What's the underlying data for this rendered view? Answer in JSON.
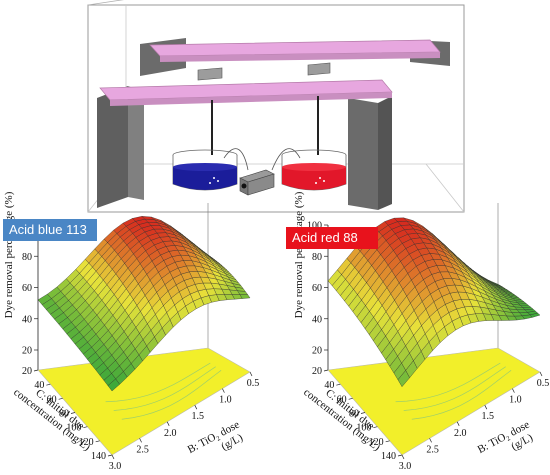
{
  "badges": {
    "left": {
      "text": "Acid blue 113",
      "bg": "#4a86c5",
      "fg": "#ffffff"
    },
    "right": {
      "text": "Acid red 88",
      "bg": "#e8121c",
      "fg": "#ffffff"
    }
  },
  "colors": {
    "box_outline": "#9a9a9a",
    "pillar": "#6b6b6b",
    "rail": "#e7a7df",
    "rail_edge": "#b57aa9",
    "blue_liquid": "#1b1d9a",
    "red_liquid": "#e2172a",
    "floor_contour": "#f2ef2a",
    "surface_low": "#1f9d3a",
    "surface_mid": "#e7e23a",
    "surface_high": "#d6281e"
  },
  "chart_data": [
    {
      "type": "surface3d",
      "name": "Acid blue 113",
      "zlabel": "Dye removal percentage (%)",
      "xlabel": "B: TiO₂ dose (g/L)",
      "ylabel": "C: Initial dye concentration (mg/L)",
      "x_ticks": [
        "3.0",
        "2.5",
        "2.0",
        "1.5",
        "1.0",
        "0.5"
      ],
      "y_ticks": [
        "20",
        "40",
        "60",
        "80",
        "100",
        "120",
        "140"
      ],
      "z_ticks": [
        "20",
        "40",
        "60",
        "80",
        "100"
      ],
      "xlim": [
        0.5,
        3.0
      ],
      "ylim": [
        20,
        140
      ],
      "zlim": [
        20,
        100
      ],
      "surface": {
        "peak_x": 1.5,
        "peak_y": 20,
        "peak_z": 97,
        "low_z": 45
      }
    },
    {
      "type": "surface3d",
      "name": "Acid red 88",
      "zlabel": "Dye removal percentage (%)",
      "xlabel": "B: TiO₂ dose (g/L)",
      "ylabel": "C: Initial dye concentration (mg/L)",
      "x_ticks": [
        "3.0",
        "2.5",
        "2.0",
        "1.5",
        "1.0",
        "0.5"
      ],
      "y_ticks": [
        "20",
        "40",
        "60",
        "80",
        "100",
        "120",
        "140"
      ],
      "z_ticks": [
        "20",
        "40",
        "60",
        "80",
        "100"
      ],
      "xlim": [
        0.5,
        3.0
      ],
      "ylim": [
        20,
        140
      ],
      "zlim": [
        20,
        100
      ],
      "surface": {
        "peak_x": 2.0,
        "peak_y": 20,
        "peak_z": 99,
        "low_z": 40
      }
    }
  ]
}
